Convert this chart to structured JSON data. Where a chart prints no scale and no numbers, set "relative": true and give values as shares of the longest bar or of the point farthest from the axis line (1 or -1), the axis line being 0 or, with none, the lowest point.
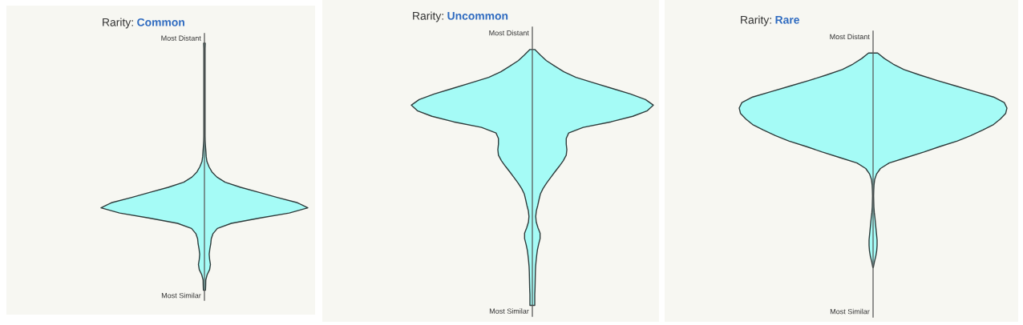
{
  "chart_data": [
    {
      "type": "area",
      "title": "Rarity:",
      "subtitle": "Common",
      "orientation": "horizontal",
      "relative": true,
      "categories": [
        "Most Distant",
        null,
        null,
        null,
        null,
        null,
        null,
        null,
        null,
        null,
        null,
        null,
        null,
        null,
        null,
        null,
        null,
        null,
        null,
        null,
        null,
        null,
        null,
        null,
        null,
        null,
        null,
        null,
        null,
        null,
        null,
        null,
        null,
        null,
        null,
        null,
        null,
        null,
        null,
        null,
        null,
        null,
        null,
        null,
        null,
        null,
        null,
        null,
        null,
        null,
        "Most Similar"
      ],
      "series": [
        {
          "color": "#a5fbf6",
          "values": [
            null,
            0.008,
            0.006,
            0.006,
            0.006,
            0.006,
            0.006,
            0.006,
            0.006,
            0.006,
            0.006,
            0.006,
            0.006,
            0.006,
            0.006,
            0.006,
            0.006,
            0.006,
            0.006,
            0.006,
            0.007,
            0.01,
            0.014,
            0.017,
            0.024,
            0.044,
            0.072,
            0.12,
            0.2,
            0.35,
            0.53,
            0.71,
            0.9,
            1.0,
            0.82,
            0.53,
            0.26,
            0.125,
            0.083,
            0.066,
            0.061,
            0.052,
            0.046,
            0.05,
            0.058,
            0.05,
            0.026,
            0.013,
            0.012,
            0.01,
            null
          ]
        }
      ]
    },
    {
      "type": "area",
      "title": "Rarity:",
      "subtitle": "Uncommon",
      "orientation": "horizontal",
      "relative": true,
      "categories": [
        "Most Distant",
        null,
        null,
        null,
        null,
        null,
        null,
        null,
        null,
        null,
        null,
        null,
        null,
        null,
        null,
        null,
        null,
        null,
        null,
        null,
        null,
        null,
        null,
        null,
        null,
        null,
        null,
        null,
        null,
        null,
        null,
        null,
        null,
        null,
        null,
        null,
        null,
        null,
        null,
        null,
        null,
        null,
        null,
        null,
        null,
        null,
        null,
        null,
        null,
        null,
        "Most Similar"
      ],
      "series": [
        {
          "color": "#a5fbf6",
          "values": [
            null,
            null,
            null,
            0.02,
            0.066,
            0.116,
            0.186,
            0.26,
            0.36,
            0.51,
            0.66,
            0.81,
            0.935,
            1.0,
            0.95,
            0.83,
            0.65,
            0.42,
            0.3,
            0.28,
            0.28,
            0.285,
            0.28,
            0.255,
            0.222,
            0.186,
            0.152,
            0.118,
            0.088,
            0.066,
            0.055,
            0.045,
            0.033,
            0.028,
            0.032,
            0.046,
            0.064,
            0.064,
            0.052,
            0.042,
            0.036,
            0.031,
            0.027,
            0.025,
            0.024,
            0.023,
            0.022,
            0.02,
            0.02,
            0.02,
            null
          ]
        }
      ]
    },
    {
      "type": "area",
      "title": "Rarity:",
      "subtitle": "Rare",
      "orientation": "horizontal",
      "relative": true,
      "categories": [
        "Most Distant",
        null,
        null,
        null,
        null,
        null,
        null,
        null,
        null,
        null,
        null,
        null,
        null,
        null,
        null,
        null,
        null,
        null,
        null,
        null,
        null,
        null,
        null,
        null,
        null,
        null,
        null,
        null,
        null,
        null,
        null,
        null,
        null,
        null,
        null,
        null,
        null,
        null,
        null,
        null,
        null,
        null,
        null,
        null,
        null,
        null,
        null,
        null,
        null,
        null,
        "Most Similar"
      ],
      "series": [
        {
          "color": "#a5fbf6",
          "values": [
            null,
            null,
            null,
            0.034,
            0.085,
            0.15,
            0.23,
            0.35,
            0.48,
            0.62,
            0.76,
            0.9,
            0.98,
            1.0,
            0.99,
            0.95,
            0.9,
            0.82,
            0.73,
            0.63,
            0.5,
            0.38,
            0.25,
            0.12,
            0.055,
            0.026,
            0.012,
            0.007,
            0.005,
            0.004,
            0.005,
            0.006,
            0.009,
            0.014,
            0.018,
            0.022,
            0.026,
            0.03,
            0.03,
            0.027,
            0.02,
            0.01,
            0.002,
            null,
            null,
            null,
            null,
            null,
            null,
            null,
            null
          ]
        }
      ]
    }
  ]
}
